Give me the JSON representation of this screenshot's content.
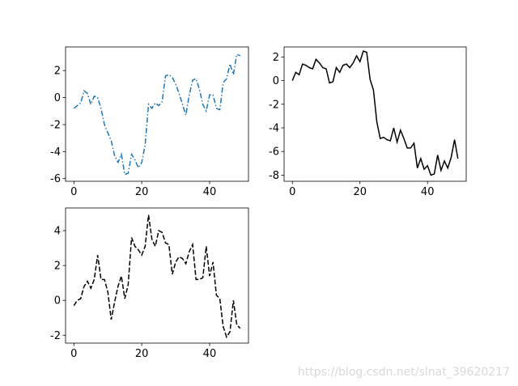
{
  "chart_data": [
    {
      "type": "line",
      "x": [
        0,
        1,
        2,
        3,
        4,
        5,
        6,
        7,
        8,
        9,
        10,
        11,
        12,
        13,
        14,
        15,
        16,
        17,
        18,
        19,
        20,
        21,
        22,
        23,
        24,
        25,
        26,
        27,
        28,
        29,
        30,
        31,
        32,
        33,
        34,
        35,
        36,
        37,
        38,
        39,
        40,
        41,
        42,
        43,
        44,
        45,
        46,
        47,
        48,
        49
      ],
      "series": [
        {
          "color": "#1f77b4",
          "linestyle": "dashdot",
          "values": [
            -0.8,
            -0.6,
            -0.4,
            0.5,
            0.3,
            -0.5,
            0.1,
            0.0,
            -0.8,
            -2.0,
            -2.6,
            -3.2,
            -4.3,
            -4.8,
            -4.2,
            -5.7,
            -5.6,
            -4.2,
            -4.6,
            -5.2,
            -4.8,
            -3.5,
            -0.5,
            -0.8,
            -0.4,
            -0.6,
            -0.3,
            1.6,
            1.7,
            1.5,
            1.0,
            0.3,
            -0.5,
            -1.3,
            0.2,
            1.3,
            1.4,
            0.6,
            -0.5,
            -1.0,
            0.2,
            0.2,
            -0.8,
            -0.9,
            1.1,
            1.4,
            2.5,
            1.7,
            3.2,
            3.1
          ]
        }
      ],
      "xlim": [
        -2.45,
        51.45
      ],
      "xticks": [
        0,
        20,
        40
      ],
      "ylim": [
        -6.2,
        3.75
      ],
      "yticks": [
        -6,
        -4,
        -2,
        0,
        2
      ]
    },
    {
      "type": "line",
      "x": [
        0,
        1,
        2,
        3,
        4,
        5,
        6,
        7,
        8,
        9,
        10,
        11,
        12,
        13,
        14,
        15,
        16,
        17,
        18,
        19,
        20,
        21,
        22,
        23,
        24,
        25,
        26,
        27,
        28,
        29,
        30,
        31,
        32,
        33,
        34,
        35,
        36,
        37,
        38,
        39,
        40,
        41,
        42,
        43,
        44,
        45,
        46,
        47,
        48,
        49
      ],
      "series": [
        {
          "color": "#000000",
          "linestyle": "solid",
          "values": [
            0.0,
            0.7,
            0.5,
            1.4,
            1.3,
            1.1,
            1.0,
            1.8,
            1.5,
            1.1,
            1.0,
            -0.2,
            -0.1,
            1.1,
            0.7,
            1.3,
            1.4,
            1.1,
            1.5,
            2.1,
            1.6,
            2.5,
            2.4,
            0.1,
            -0.8,
            -3.5,
            -4.9,
            -4.8,
            -5.0,
            -5.1,
            -4.0,
            -5.2,
            -4.2,
            -4.9,
            -5.7,
            -5.7,
            -5.3,
            -7.4,
            -6.6,
            -7.5,
            -7.2,
            -8.0,
            -7.9,
            -6.3,
            -7.6,
            -6.8,
            -7.4,
            -6.5,
            -5.0,
            -6.6
          ]
        }
      ],
      "xlim": [
        -2.45,
        51.45
      ],
      "xticks": [
        0,
        20,
        40
      ],
      "ylim": [
        -8.52,
        2.85
      ],
      "yticks": [
        -8,
        -6,
        -4,
        -2,
        0,
        2
      ]
    },
    {
      "type": "line",
      "x": [
        0,
        1,
        2,
        3,
        4,
        5,
        6,
        7,
        8,
        9,
        10,
        11,
        12,
        13,
        14,
        15,
        16,
        17,
        18,
        19,
        20,
        21,
        22,
        23,
        24,
        25,
        26,
        27,
        28,
        29,
        30,
        31,
        32,
        33,
        34,
        35,
        36,
        37,
        38,
        39,
        40,
        41,
        42,
        43,
        44,
        45,
        46,
        47,
        48,
        49
      ],
      "series": [
        {
          "color": "#000000",
          "linestyle": "dashed",
          "values": [
            -0.3,
            0.0,
            0.1,
            0.8,
            1.1,
            0.7,
            1.2,
            2.6,
            1.2,
            1.2,
            0.5,
            -1.1,
            -0.1,
            0.8,
            1.4,
            0.1,
            0.9,
            3.6,
            3.1,
            2.9,
            2.6,
            3.1,
            4.9,
            3.5,
            3.1,
            4.0,
            3.9,
            3.3,
            3.2,
            1.5,
            2.2,
            2.5,
            2.4,
            2.1,
            2.8,
            3.2,
            1.2,
            1.2,
            1.3,
            3.1,
            1.4,
            2.2,
            0.3,
            0.1,
            -1.5,
            -2.1,
            -1.8,
            0.0,
            -1.4,
            -1.6
          ]
        }
      ],
      "xlim": [
        -2.45,
        51.45
      ],
      "xticks": [
        0,
        20,
        40
      ],
      "ylim": [
        -2.45,
        5.3
      ],
      "yticks": [
        -2,
        0,
        2,
        4
      ]
    }
  ],
  "watermark": "https://blog.csdn.net/slnat_39620217"
}
